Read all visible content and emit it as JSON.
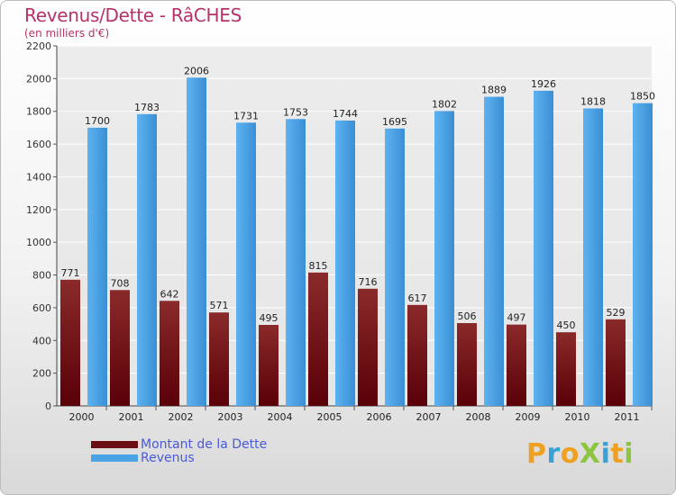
{
  "title": "Revenus/Dette - RâCHES",
  "subtitle": "(en milliers d'€)",
  "colors": {
    "title": "#b5336a",
    "dette": "#6b0f14",
    "revenus": "#4aa3e4",
    "legend_text": "#4a5ad8"
  },
  "logo": {
    "text": "ProXiti"
  },
  "chart_data": {
    "type": "bar",
    "categories": [
      "2000",
      "2001",
      "2002",
      "2003",
      "2004",
      "2005",
      "2006",
      "2007",
      "2008",
      "2009",
      "2010",
      "2011"
    ],
    "series": [
      {
        "name": "Montant de la Dette",
        "values": [
          771,
          708,
          642,
          571,
          495,
          815,
          716,
          617,
          506,
          497,
          450,
          529
        ]
      },
      {
        "name": "Revenus",
        "values": [
          1700,
          1783,
          2006,
          1731,
          1753,
          1744,
          1695,
          1802,
          1889,
          1926,
          1818,
          1850
        ]
      }
    ],
    "y_ticks": [
      0,
      200,
      400,
      600,
      800,
      1000,
      1200,
      1400,
      1600,
      1800,
      2000,
      2200
    ],
    "ylim": [
      0,
      2200
    ],
    "grid": true,
    "legend_position": "bottom-left"
  }
}
